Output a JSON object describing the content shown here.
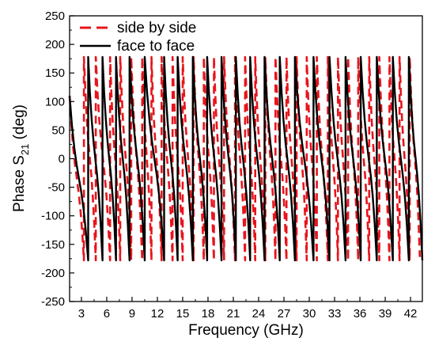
{
  "chart_data": {
    "type": "line",
    "title": "",
    "xlabel": "Frequency (GHz)",
    "ylabel_main": "Phase S",
    "ylabel_sub": "21",
    "ylabel_tail": " (deg)",
    "xlim": [
      1.6,
      43.4
    ],
    "ylim": [
      -250,
      250
    ],
    "xticks": [
      3,
      6,
      9,
      12,
      15,
      18,
      21,
      24,
      27,
      30,
      33,
      36,
      39,
      42
    ],
    "xtick_labels": [
      "3",
      "6",
      "9",
      "12",
      "15",
      "18",
      "21",
      "24",
      "27",
      "30",
      "33",
      "36",
      "39",
      "42"
    ],
    "yticks": [
      -250,
      -200,
      -150,
      -100,
      -50,
      0,
      50,
      100,
      150,
      200,
      250
    ],
    "ytick_labels": [
      "-250",
      "-200",
      "-150",
      "-100",
      "-50",
      "0",
      "50",
      "100",
      "150",
      "200",
      "250"
    ],
    "grid": false,
    "legend_position": "top-left",
    "series": [
      {
        "name": "side by side",
        "color": "#e8141c",
        "dash": "dashed",
        "wraps": [
          1.6,
          3.3,
          4.7,
          6.4,
          7.6,
          8.9,
          10.2,
          11.3,
          12.5,
          13.8,
          15.0,
          16.3,
          17.5,
          18.7,
          19.9,
          21.2,
          22.4,
          23.6,
          24.8,
          26.0,
          27.3,
          28.5,
          29.7,
          30.9,
          32.2,
          33.4,
          34.6,
          35.8,
          37.1,
          38.3,
          39.5,
          40.7,
          41.9,
          43.1
        ],
        "end_phase": -172
      },
      {
        "name": "face to face",
        "color": "#000000",
        "dash": "solid",
        "wraps": [
          1.6,
          3.8,
          5.5,
          7.1,
          8.7,
          10.5,
          12.8,
          14.4,
          16.2,
          17.9,
          19.6,
          21.3,
          23.0,
          24.7,
          26.5,
          28.3,
          30.5,
          32.4,
          34.3,
          36.1,
          38.0,
          39.9,
          41.8,
          43.4
        ],
        "end_phase": -178
      }
    ]
  }
}
